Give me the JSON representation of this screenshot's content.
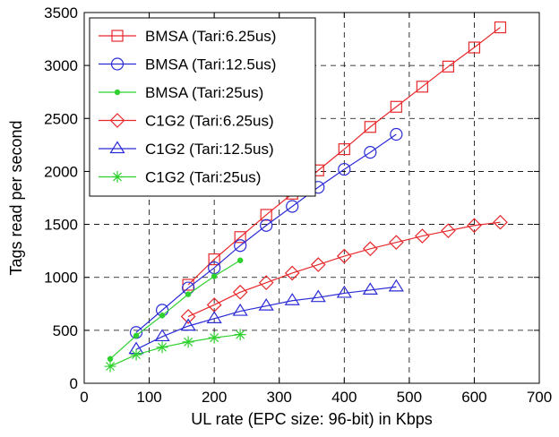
{
  "chart_data": {
    "type": "line",
    "xlabel": "UL rate (EPC size: 96-bit) in Kbps",
    "ylabel": "Tags read per second",
    "xlim": [
      0,
      700
    ],
    "ylim": [
      0,
      3500
    ],
    "xticks": [
      "0",
      "100",
      "200",
      "300",
      "400",
      "500",
      "600",
      "700"
    ],
    "yticks": [
      "0",
      "500",
      "1000",
      "1500",
      "2000",
      "2500",
      "3000",
      "3500"
    ],
    "grid": true,
    "legend_position": "top-left",
    "series": [
      {
        "name": "BMSA (Tari:6.25us)",
        "color": "#e8282b",
        "marker": "square",
        "x": [
          160,
          200,
          240,
          280,
          320,
          360,
          400,
          440,
          480,
          520,
          560,
          600,
          640
        ],
        "y": [
          930,
          1170,
          1380,
          1590,
          1790,
          2010,
          2210,
          2420,
          2610,
          2800,
          2990,
          3170,
          3360
        ]
      },
      {
        "name": "BMSA (Tari:12.5us)",
        "color": "#2b2bd6",
        "marker": "circle",
        "x": [
          80,
          120,
          160,
          200,
          240,
          280,
          320,
          360,
          400,
          440,
          480
        ],
        "y": [
          480,
          690,
          900,
          1090,
          1300,
          1490,
          1670,
          1850,
          2020,
          2180,
          2350
        ]
      },
      {
        "name": "BMSA (Tari:25us)",
        "color": "#2fd12f",
        "marker": "dot",
        "x": [
          40,
          80,
          120,
          160,
          200,
          240
        ],
        "y": [
          230,
          450,
          640,
          840,
          1010,
          1160
        ]
      },
      {
        "name": "C1G2 (Tari:6.25us)",
        "color": "#e8282b",
        "marker": "diamond",
        "x": [
          160,
          200,
          240,
          280,
          320,
          360,
          400,
          440,
          480,
          520,
          560,
          600,
          640
        ],
        "y": [
          630,
          740,
          860,
          950,
          1040,
          1120,
          1200,
          1270,
          1330,
          1390,
          1440,
          1490,
          1520
        ]
      },
      {
        "name": "C1G2 (Tari:12.5us)",
        "color": "#2b2bd6",
        "marker": "triangle",
        "x": [
          80,
          120,
          160,
          200,
          240,
          280,
          320,
          360,
          400,
          440,
          480
        ],
        "y": [
          320,
          440,
          540,
          610,
          680,
          730,
          780,
          810,
          850,
          880,
          910
        ]
      },
      {
        "name": "C1G2 (Tari:25us)",
        "color": "#2fd12f",
        "marker": "star",
        "x": [
          40,
          80,
          120,
          160,
          200,
          240
        ],
        "y": [
          160,
          270,
          340,
          390,
          430,
          460
        ]
      }
    ]
  }
}
